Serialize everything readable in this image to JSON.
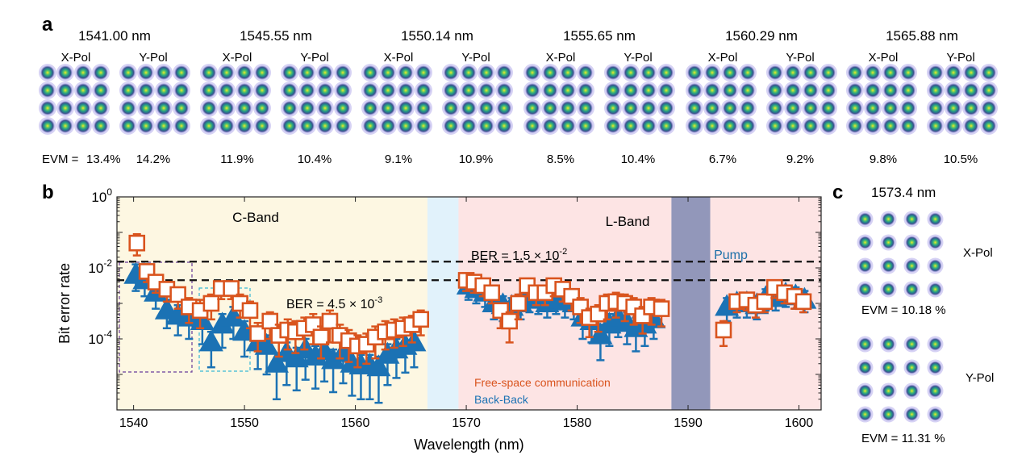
{
  "panels": {
    "a": "a",
    "b": "b",
    "c": "c"
  },
  "colors": {
    "cband_fill": "#fdf7e2",
    "gap_fill": "#e1f2fb",
    "lband_fill": "#fde4e4",
    "pump_fill": "#9297ba",
    "fso_color": "#d9541e",
    "b2b_color": "#1b72b4",
    "pump_text": "#1c6fa8"
  },
  "panel_a": {
    "evm_prefix": "EVM = ",
    "groups": [
      {
        "wavelength": "1541.00 nm",
        "xpol": "X-Pol",
        "ypol": "Y-Pol",
        "evm_x": "13.4%",
        "evm_y": "14.2%"
      },
      {
        "wavelength": "1545.55 nm",
        "xpol": "X-Pol",
        "ypol": "Y-Pol",
        "evm_x": "11.9%",
        "evm_y": "10.4%"
      },
      {
        "wavelength": "1550.14 nm",
        "xpol": "X-Pol",
        "ypol": "Y-Pol",
        "evm_x": "9.1%",
        "evm_y": "10.9%"
      },
      {
        "wavelength": "1555.65 nm",
        "xpol": "X-Pol",
        "ypol": "Y-Pol",
        "evm_x": "8.5%",
        "evm_y": "10.4%"
      },
      {
        "wavelength": "1560.29 nm",
        "xpol": "X-Pol",
        "ypol": "Y-Pol",
        "evm_x": "6.7%",
        "evm_y": "9.2%"
      },
      {
        "wavelength": "1565.88 nm",
        "xpol": "X-Pol",
        "ypol": "Y-Pol",
        "evm_x": "9.8%",
        "evm_y": "10.5%"
      }
    ]
  },
  "panel_c": {
    "wavelength": "1573.4 nm",
    "xpol": "X-Pol",
    "ypol": "Y-Pol",
    "evm_x": "EVM = 10.18 %",
    "evm_y": "EVM = 11.31 %"
  },
  "chart_data": {
    "type": "scatter",
    "xlabel": "Wavelength (nm)",
    "ylabel": "Bit error rate",
    "xlim": [
      1538.5,
      1602
    ],
    "ylim_log10": [
      -6,
      0
    ],
    "yscale": "log",
    "x_ticks": [
      1540,
      1550,
      1560,
      1570,
      1580,
      1590,
      1600
    ],
    "y_ticks": [
      {
        "base": "10",
        "exp": "-4",
        "value": -4
      },
      {
        "base": "10",
        "exp": "-2",
        "value": -2
      },
      {
        "base": "10",
        "exp": "0",
        "value": 0
      }
    ],
    "regions": [
      {
        "label": "C-Band",
        "from": 1538.5,
        "to": 1566.5,
        "color": "cband"
      },
      {
        "label": "",
        "from": 1566.5,
        "to": 1569.3,
        "color": "gap"
      },
      {
        "label": "L-Band",
        "from": 1569.3,
        "to": 1588.5,
        "color": "lband"
      },
      {
        "label": "Pump",
        "from": 1588.5,
        "to": 1592.0,
        "color": "pump"
      },
      {
        "label": "",
        "from": 1592.0,
        "to": 1602,
        "color": "lband"
      }
    ],
    "thresholds": [
      {
        "label_prefix": "BER = 1.5 × 10",
        "label_exp": "-2",
        "value": 0.015
      },
      {
        "label_prefix": "BER = 4.5 × 10",
        "label_exp": "-3",
        "value": 0.0045
      }
    ],
    "legend": [
      "Free-space communication",
      "Back-Back"
    ],
    "series": [
      {
        "name": "Free-space communication",
        "marker": "square",
        "points": [
          [
            1540.3,
            -1.3,
            0.25,
            0.35
          ],
          [
            1541.2,
            -2.1,
            0.2,
            0.3
          ],
          [
            1542.0,
            -2.4,
            0.2,
            0.3
          ],
          [
            1543.0,
            -2.6,
            0.2,
            0.35
          ],
          [
            1544.0,
            -2.75,
            0.2,
            0.4
          ],
          [
            1545.0,
            -3.1,
            0.25,
            0.45
          ],
          [
            1546.0,
            -3.2,
            0.3,
            0.5
          ],
          [
            1547.0,
            -3.0,
            0.25,
            0.45
          ],
          [
            1547.9,
            -2.58,
            0.2,
            0.3
          ],
          [
            1548.8,
            -2.58,
            0.2,
            0.3
          ],
          [
            1549.6,
            -3.0,
            0.25,
            0.4
          ],
          [
            1550.5,
            -3.2,
            0.25,
            0.5
          ],
          [
            1551.2,
            -3.85,
            0.3,
            0.5
          ],
          [
            1552.3,
            -3.5,
            0.25,
            0.5
          ],
          [
            1553.1,
            -3.9,
            0.3,
            0.6
          ],
          [
            1553.9,
            -3.75,
            0.3,
            0.55
          ],
          [
            1554.6,
            -3.8,
            0.3,
            0.6
          ],
          [
            1555.4,
            -3.7,
            0.3,
            0.6
          ],
          [
            1556.2,
            -3.6,
            0.3,
            0.55
          ],
          [
            1556.9,
            -3.95,
            0.3,
            0.6
          ],
          [
            1557.7,
            -3.5,
            0.3,
            0.6
          ],
          [
            1558.6,
            -3.9,
            0.3,
            0.65
          ],
          [
            1559.4,
            -4.05,
            0.3,
            0.6
          ],
          [
            1560.2,
            -4.2,
            0.3,
            0.6
          ],
          [
            1561.0,
            -4.15,
            0.3,
            0.55
          ],
          [
            1561.8,
            -3.95,
            0.3,
            0.6
          ],
          [
            1562.7,
            -3.8,
            0.3,
            0.5
          ],
          [
            1563.5,
            -3.75,
            0.3,
            0.5
          ],
          [
            1564.3,
            -3.7,
            0.3,
            0.5
          ],
          [
            1565.1,
            -3.6,
            0.25,
            0.5
          ],
          [
            1565.9,
            -3.45,
            0.25,
            0.45
          ],
          [
            1570.0,
            -2.35,
            0.2,
            0.3
          ],
          [
            1570.7,
            -2.4,
            0.2,
            0.3
          ],
          [
            1571.5,
            -2.5,
            0.2,
            0.3
          ],
          [
            1572.3,
            -2.7,
            0.2,
            0.3
          ],
          [
            1573.1,
            -3.2,
            0.2,
            0.5
          ],
          [
            1573.9,
            -3.5,
            0.25,
            0.6
          ],
          [
            1574.7,
            -3.0,
            0.25,
            0.45
          ],
          [
            1575.5,
            -2.5,
            0.2,
            0.3
          ],
          [
            1576.3,
            -2.7,
            0.2,
            0.35
          ],
          [
            1577.1,
            -2.7,
            0.2,
            0.35
          ],
          [
            1577.9,
            -2.5,
            0.2,
            0.3
          ],
          [
            1578.7,
            -2.6,
            0.2,
            0.35
          ],
          [
            1579.5,
            -2.8,
            0.2,
            0.4
          ],
          [
            1580.3,
            -3.1,
            0.25,
            0.45
          ],
          [
            1581.1,
            -3.4,
            0.25,
            0.55
          ],
          [
            1581.9,
            -3.3,
            0.25,
            0.5
          ],
          [
            1582.7,
            -3.0,
            0.25,
            0.45
          ],
          [
            1583.5,
            -2.95,
            0.25,
            0.45
          ],
          [
            1584.3,
            -3.0,
            0.25,
            0.5
          ],
          [
            1585.1,
            -3.1,
            0.25,
            0.5
          ],
          [
            1585.9,
            -3.35,
            0.25,
            0.5
          ],
          [
            1586.7,
            -3.1,
            0.25,
            0.5
          ],
          [
            1587.6,
            -3.15,
            0.25,
            0.5
          ],
          [
            1593.2,
            -3.75,
            0.25,
            0.45
          ],
          [
            1594.4,
            -2.95,
            0.2,
            0.3
          ],
          [
            1595.3,
            -2.9,
            0.2,
            0.3
          ],
          [
            1596.1,
            -3.05,
            0.2,
            0.35
          ],
          [
            1596.9,
            -2.95,
            0.2,
            0.3
          ],
          [
            1597.8,
            -2.55,
            0.2,
            0.3
          ],
          [
            1598.7,
            -2.7,
            0.2,
            0.3
          ],
          [
            1599.6,
            -2.8,
            0.2,
            0.35
          ],
          [
            1600.4,
            -2.95,
            0.2,
            0.3
          ]
        ]
      },
      {
        "name": "Back-Back",
        "marker": "triangle",
        "points": [
          [
            1540.2,
            -2.2,
            0.3,
            0.45
          ],
          [
            1541.0,
            -2.35,
            0.3,
            0.45
          ],
          [
            1542.0,
            -2.7,
            0.3,
            0.45
          ],
          [
            1543.0,
            -3.2,
            0.3,
            0.5
          ],
          [
            1544.0,
            -3.35,
            0.3,
            0.55
          ],
          [
            1545.0,
            -3.4,
            0.3,
            0.6
          ],
          [
            1546.2,
            -3.5,
            0.3,
            0.65
          ],
          [
            1547.0,
            -4.1,
            0.3,
            0.7
          ],
          [
            1548.0,
            -3.6,
            0.3,
            0.65
          ],
          [
            1549.0,
            -3.4,
            0.3,
            0.6
          ],
          [
            1550.0,
            -3.8,
            0.3,
            0.7
          ],
          [
            1551.2,
            -4.1,
            0.3,
            0.75
          ],
          [
            1552.0,
            -4.2,
            0.3,
            0.8
          ],
          [
            1552.9,
            -4.7,
            0.3,
            1.0
          ],
          [
            1553.8,
            -4.4,
            0.3,
            0.9
          ],
          [
            1554.7,
            -4.55,
            0.3,
            0.9
          ],
          [
            1555.5,
            -4.3,
            0.3,
            0.85
          ],
          [
            1556.4,
            -4.5,
            0.3,
            0.9
          ],
          [
            1557.2,
            -4.35,
            0.3,
            0.85
          ],
          [
            1558.0,
            -4.6,
            0.3,
            0.9
          ],
          [
            1558.9,
            -4.4,
            0.3,
            0.85
          ],
          [
            1559.7,
            -4.7,
            0.3,
            0.9
          ],
          [
            1560.5,
            -4.75,
            0.3,
            0.95
          ],
          [
            1561.3,
            -4.75,
            0.3,
            0.95
          ],
          [
            1562.1,
            -4.8,
            0.3,
            1.0
          ],
          [
            1562.9,
            -4.45,
            0.3,
            0.85
          ],
          [
            1563.7,
            -4.3,
            0.3,
            0.8
          ],
          [
            1564.5,
            -4.2,
            0.3,
            0.75
          ],
          [
            1565.3,
            -4.1,
            0.3,
            0.7
          ],
          [
            1570.2,
            -2.5,
            0.25,
            0.4
          ],
          [
            1570.9,
            -2.6,
            0.25,
            0.4
          ],
          [
            1571.7,
            -2.7,
            0.25,
            0.4
          ],
          [
            1572.5,
            -3.0,
            0.25,
            0.45
          ],
          [
            1573.3,
            -3.05,
            0.25,
            0.45
          ],
          [
            1574.1,
            -3.1,
            0.25,
            0.45
          ],
          [
            1574.9,
            -3.0,
            0.25,
            0.45
          ],
          [
            1575.7,
            -2.85,
            0.25,
            0.4
          ],
          [
            1576.5,
            -2.9,
            0.25,
            0.4
          ],
          [
            1577.3,
            -3.0,
            0.25,
            0.4
          ],
          [
            1578.1,
            -2.9,
            0.25,
            0.4
          ],
          [
            1578.9,
            -2.95,
            0.25,
            0.45
          ],
          [
            1579.7,
            -3.0,
            0.25,
            0.45
          ],
          [
            1580.5,
            -3.4,
            0.3,
            0.6
          ],
          [
            1581.3,
            -3.5,
            0.3,
            0.6
          ],
          [
            1582.1,
            -3.9,
            0.3,
            0.7
          ],
          [
            1582.9,
            -3.6,
            0.3,
            0.6
          ],
          [
            1583.7,
            -3.4,
            0.3,
            0.55
          ],
          [
            1584.5,
            -3.55,
            0.3,
            0.6
          ],
          [
            1585.3,
            -3.7,
            0.3,
            0.65
          ],
          [
            1586.1,
            -3.6,
            0.3,
            0.6
          ],
          [
            1586.9,
            -3.45,
            0.3,
            0.55
          ],
          [
            1593.5,
            -3.1,
            0.25,
            0.4
          ],
          [
            1594.4,
            -3.0,
            0.25,
            0.4
          ],
          [
            1595.3,
            -3.0,
            0.25,
            0.4
          ],
          [
            1596.2,
            -3.05,
            0.25,
            0.4
          ],
          [
            1597.0,
            -2.85,
            0.25,
            0.35
          ],
          [
            1597.9,
            -2.85,
            0.25,
            0.35
          ],
          [
            1598.8,
            -2.75,
            0.25,
            0.35
          ],
          [
            1599.7,
            -2.8,
            0.25,
            0.35
          ],
          [
            1600.5,
            -2.9,
            0.25,
            0.35
          ]
        ]
      }
    ]
  }
}
